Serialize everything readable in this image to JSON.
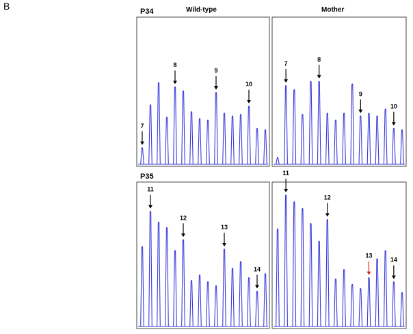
{
  "panel_letter": "B",
  "colors": {
    "trace": "#3a3ad9",
    "arrow": "#000000",
    "highlight_arrow": "#e0201e",
    "frame": "#444444"
  },
  "chart_data": [
    {
      "type": "line",
      "id": "p34-wildtype",
      "row_label": "P34",
      "column_label": "Wild-type",
      "ylim": [
        0,
        100
      ],
      "peaks": [
        12,
        43,
        59,
        34,
        56,
        53,
        38,
        33,
        32,
        52,
        37,
        35,
        36,
        42,
        26,
        25
      ],
      "markers": [
        {
          "label": "7",
          "peak": 0,
          "color": "#000000"
        },
        {
          "label": "8",
          "peak": 4,
          "color": "#000000"
        },
        {
          "label": "9",
          "peak": 9,
          "color": "#000000"
        },
        {
          "label": "10",
          "peak": 13,
          "color": "#000000"
        }
      ]
    },
    {
      "type": "line",
      "id": "p34-mother",
      "row_label": "",
      "column_label": "Mother",
      "ylim": [
        0,
        100
      ],
      "peaks": [
        5,
        57,
        54,
        36,
        60,
        60,
        37,
        32,
        37,
        58,
        35,
        37,
        35,
        40,
        26,
        25
      ],
      "markers": [
        {
          "label": "7",
          "peak": 1,
          "color": "#000000"
        },
        {
          "label": "8",
          "peak": 5,
          "color": "#000000"
        },
        {
          "label": "9",
          "peak": 10,
          "color": "#000000"
        },
        {
          "label": "10",
          "peak": 14,
          "color": "#000000"
        }
      ]
    },
    {
      "type": "line",
      "id": "p35-wildtype",
      "row_label": "P35",
      "column_label": "",
      "ylim": [
        0,
        100
      ],
      "peaks": [
        59,
        85,
        77,
        73,
        56,
        64,
        34,
        38,
        33,
        30,
        57,
        43,
        48,
        36,
        26,
        39
      ],
      "markers": [
        {
          "label": "11",
          "peak": 1,
          "color": "#000000"
        },
        {
          "label": "12",
          "peak": 5,
          "color": "#000000"
        },
        {
          "label": "13",
          "peak": 10,
          "color": "#000000"
        },
        {
          "label": "14",
          "peak": 14,
          "color": "#000000"
        }
      ]
    },
    {
      "type": "line",
      "id": "p35-mother",
      "row_label": "",
      "column_label": "",
      "ylim": [
        0,
        100
      ],
      "peaks": [
        72,
        97,
        92,
        87,
        76,
        63,
        79,
        35,
        42,
        31,
        28,
        36,
        50,
        56,
        33,
        25
      ],
      "markers": [
        {
          "label": "11",
          "peak": 1,
          "color": "#000000"
        },
        {
          "label": "12",
          "peak": 6,
          "color": "#000000"
        },
        {
          "label": "13",
          "peak": 11,
          "color": "#e0201e"
        },
        {
          "label": "14",
          "peak": 14,
          "color": "#000000"
        }
      ]
    }
  ]
}
